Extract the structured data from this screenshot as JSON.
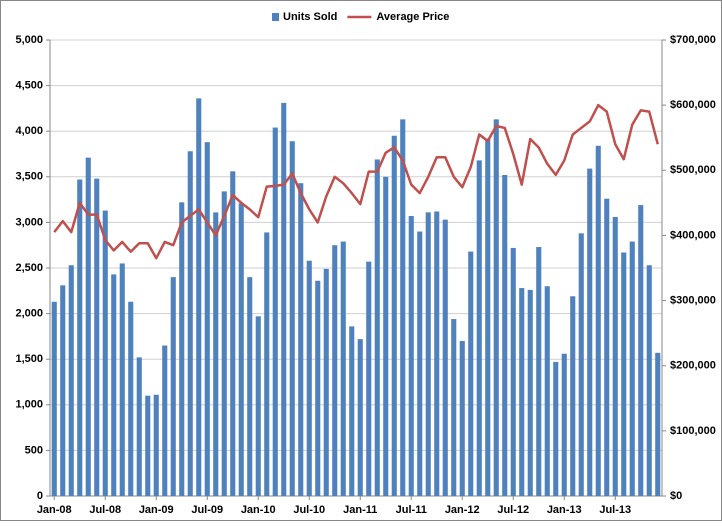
{
  "chart_data": {
    "type": "bar_line",
    "categories": [
      "Jan-08",
      null,
      null,
      null,
      null,
      null,
      "Jul-08",
      null,
      null,
      null,
      null,
      null,
      "Jan-09",
      null,
      null,
      null,
      null,
      null,
      "Jul-09",
      null,
      null,
      null,
      null,
      null,
      "Jan-10",
      null,
      null,
      null,
      null,
      null,
      "Jul-10",
      null,
      null,
      null,
      null,
      null,
      "Jan-11",
      null,
      null,
      null,
      null,
      null,
      "Jul-11",
      null,
      null,
      null,
      null,
      null,
      "Jan-12",
      null,
      null,
      null,
      null,
      null,
      "Jul-12",
      null,
      null,
      null,
      null,
      null,
      "Jan-13",
      null,
      null,
      null,
      null,
      null,
      "Jul-13",
      null,
      null,
      null,
      null,
      null
    ],
    "series": [
      {
        "name": "Units Sold",
        "color": "#4f81bd",
        "type": "bar",
        "values": [
          2130,
          2310,
          2530,
          3470,
          3710,
          3480,
          3130,
          2430,
          2550,
          2130,
          1520,
          1100,
          1110,
          1650,
          2400,
          3220,
          3780,
          4360,
          3880,
          3110,
          3340,
          3560,
          3210,
          2400,
          1970,
          2890,
          4040,
          4310,
          3890,
          3430,
          2580,
          2360,
          2490,
          2750,
          2790,
          1860,
          1720,
          2570,
          3690,
          3500,
          3950,
          4130,
          3070,
          2900,
          3110,
          3120,
          3030,
          1940,
          1700,
          2680,
          3680,
          3920,
          4130,
          3520,
          2720,
          2280,
          2260,
          2730,
          2300,
          1470,
          1560,
          2190,
          2880,
          3590,
          3840,
          3260,
          3060,
          2670,
          2790,
          3190,
          2530,
          1570
        ]
      },
      {
        "name": "Average Price",
        "color": "#c0504d",
        "type": "line",
        "axis": "y2",
        "values": [
          405000,
          422000,
          405000,
          450000,
          432000,
          432000,
          393000,
          377000,
          390000,
          375000,
          388000,
          388000,
          365000,
          390000,
          385000,
          420000,
          430000,
          440000,
          420000,
          400000,
          430000,
          462000,
          450000,
          440000,
          428000,
          475000,
          476000,
          478000,
          495000,
          465000,
          440000,
          420000,
          460000,
          490000,
          480000,
          465000,
          448000,
          498000,
          498000,
          527000,
          535000,
          515000,
          478000,
          465000,
          490000,
          520000,
          520000,
          490000,
          474000,
          505000,
          555000,
          545000,
          568000,
          565000,
          525000,
          478000,
          548000,
          535000,
          510000,
          493000,
          515000,
          555000,
          565000,
          575000,
          600000,
          590000,
          540000,
          517000,
          570000,
          592000,
          590000,
          540000
        ]
      }
    ],
    "ylim": [
      0,
      5000
    ],
    "yticks": [
      0,
      500,
      {
        "value": 1000,
        "label": "1,000"
      },
      {
        "value": 1500,
        "label": "1,500"
      },
      {
        "value": 2000,
        "label": "2,000"
      },
      {
        "value": 2500,
        "label": "2,500"
      },
      {
        "value": 3000,
        "label": "3,000"
      },
      {
        "value": 3500,
        "label": "3,500"
      },
      {
        "value": 4000,
        "label": "4,000"
      },
      {
        "value": 4500,
        "label": "4,500"
      },
      {
        "value": 5000,
        "label": "5,000"
      }
    ],
    "y2lim": [
      0,
      700000
    ],
    "y2ticks": [
      {
        "value": 0,
        "label": "$0"
      },
      {
        "value": 100000,
        "label": "$100,000"
      },
      {
        "value": 200000,
        "label": "$200,000"
      },
      {
        "value": 300000,
        "label": "$300,000"
      },
      {
        "value": 400000,
        "label": "$400,000"
      },
      {
        "value": 500000,
        "label": "$500,000"
      },
      {
        "value": 600000,
        "label": "$600,000"
      },
      {
        "value": 700000,
        "label": "$700,000"
      }
    ],
    "grid": true,
    "legend": "top"
  }
}
